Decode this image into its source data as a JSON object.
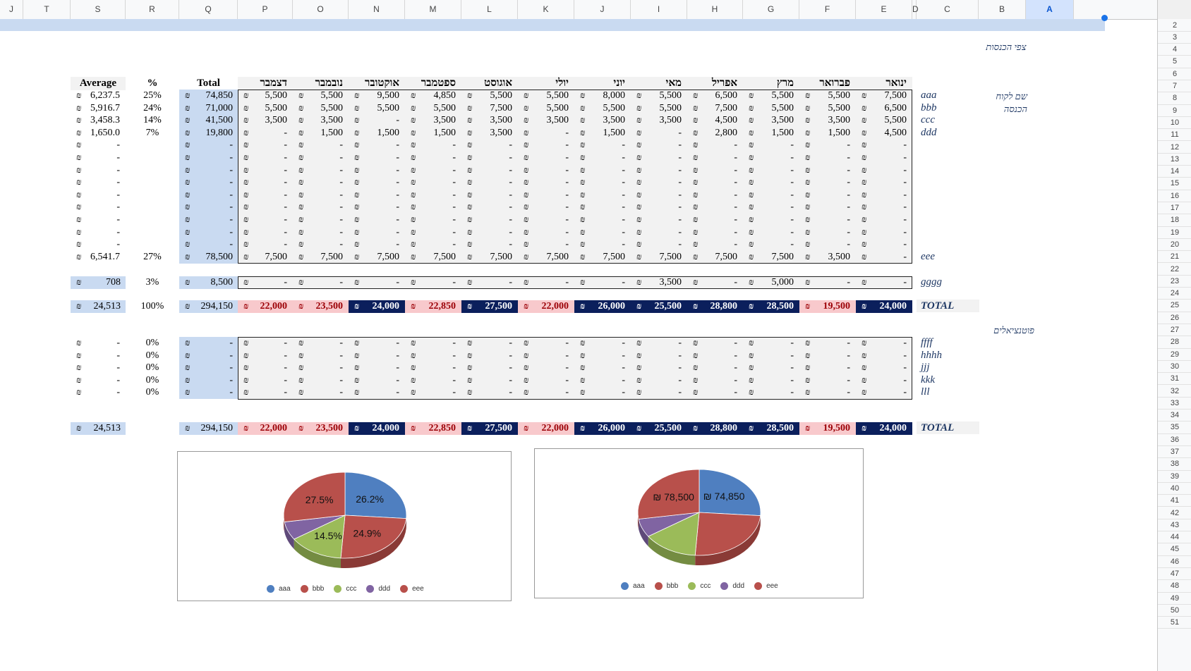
{
  "columns": [
    "J",
    "T",
    "S",
    "R",
    "Q",
    "P",
    "O",
    "N",
    "M",
    "L",
    "K",
    "J",
    "I",
    "H",
    "G",
    "F",
    "E",
    "D",
    "C",
    "B",
    "A"
  ],
  "rows_visible": [
    "2",
    "3",
    "4",
    "5",
    "6",
    "7",
    "8",
    "9",
    "10",
    "11",
    "12",
    "13",
    "14",
    "15",
    "16",
    "17",
    "18",
    "19",
    "20",
    "21",
    "22",
    "23",
    "24",
    "25",
    "26",
    "27",
    "28",
    "29",
    "30",
    "31",
    "32",
    "33",
    "34",
    "35",
    "36",
    "37",
    "38",
    "39",
    "40",
    "41",
    "42",
    "43",
    "44",
    "45",
    "46",
    "47",
    "48",
    "49",
    "50",
    "51"
  ],
  "currency": "₪",
  "labels": {
    "section_title": "צפי הכנסות",
    "client_name": "שם לקוח",
    "income": "הכנסה",
    "potentials": "פוטנציאלים",
    "average": "Average",
    "percent": "%",
    "total": "Total"
  },
  "months": [
    "ינואר",
    "פברואר",
    "מרץ",
    "אפריל",
    "מאי",
    "יוני",
    "יולי",
    "אוגוסט",
    "ספטמבר",
    "אוקטובר",
    "נובמבר",
    "דצמבר"
  ],
  "main_rows": [
    {
      "name": "aaa",
      "vals": [
        "7,500",
        "5,500",
        "5,500",
        "6,500",
        "5,500",
        "8,000",
        "5,500",
        "5,500",
        "4,850",
        "9,500",
        "5,500",
        "5,500"
      ],
      "total": "74,850",
      "pct": "25%",
      "avg": "6,237.5"
    },
    {
      "name": "bbb",
      "vals": [
        "6,500",
        "5,500",
        "5,500",
        "7,500",
        "5,500",
        "5,500",
        "5,500",
        "7,500",
        "5,500",
        "5,500",
        "5,500",
        "5,500"
      ],
      "total": "71,000",
      "pct": "24%",
      "avg": "5,916.7"
    },
    {
      "name": "ccc",
      "vals": [
        "5,500",
        "3,500",
        "3,500",
        "4,500",
        "3,500",
        "3,500",
        "3,500",
        "3,500",
        "3,500",
        "-",
        "3,500",
        "3,500"
      ],
      "total": "41,500",
      "pct": "14%",
      "avg": "3,458.3"
    },
    {
      "name": "ddd",
      "vals": [
        "4,500",
        "1,500",
        "1,500",
        "2,800",
        "-",
        "1,500",
        "-",
        "3,500",
        "1,500",
        "1,500",
        "1,500",
        "-"
      ],
      "total": "19,800",
      "pct": "7%",
      "avg": "1,650.0"
    },
    {
      "name": "",
      "vals": [
        "-",
        "-",
        "-",
        "-",
        "-",
        "-",
        "-",
        "-",
        "-",
        "-",
        "-",
        "-"
      ],
      "total": "-",
      "pct": "",
      "avg": "-"
    },
    {
      "name": "",
      "vals": [
        "-",
        "-",
        "-",
        "-",
        "-",
        "-",
        "-",
        "-",
        "-",
        "-",
        "-",
        "-"
      ],
      "total": "-",
      "pct": "",
      "avg": "-"
    },
    {
      "name": "",
      "vals": [
        "-",
        "-",
        "-",
        "-",
        "-",
        "-",
        "-",
        "-",
        "-",
        "-",
        "-",
        "-"
      ],
      "total": "-",
      "pct": "",
      "avg": "-"
    },
    {
      "name": "",
      "vals": [
        "-",
        "-",
        "-",
        "-",
        "-",
        "-",
        "-",
        "-",
        "-",
        "-",
        "-",
        "-"
      ],
      "total": "-",
      "pct": "",
      "avg": "-"
    },
    {
      "name": "",
      "vals": [
        "-",
        "-",
        "-",
        "-",
        "-",
        "-",
        "-",
        "-",
        "-",
        "-",
        "-",
        "-"
      ],
      "total": "-",
      "pct": "",
      "avg": "-"
    },
    {
      "name": "",
      "vals": [
        "-",
        "-",
        "-",
        "-",
        "-",
        "-",
        "-",
        "-",
        "-",
        "-",
        "-",
        "-"
      ],
      "total": "-",
      "pct": "",
      "avg": "-"
    },
    {
      "name": "",
      "vals": [
        "-",
        "-",
        "-",
        "-",
        "-",
        "-",
        "-",
        "-",
        "-",
        "-",
        "-",
        "-"
      ],
      "total": "-",
      "pct": "",
      "avg": "-"
    },
    {
      "name": "",
      "vals": [
        "-",
        "-",
        "-",
        "-",
        "-",
        "-",
        "-",
        "-",
        "-",
        "-",
        "-",
        "-"
      ],
      "total": "-",
      "pct": "",
      "avg": "-"
    },
    {
      "name": "",
      "vals": [
        "-",
        "-",
        "-",
        "-",
        "-",
        "-",
        "-",
        "-",
        "-",
        "-",
        "-",
        "-"
      ],
      "total": "-",
      "pct": "",
      "avg": "-"
    },
    {
      "name": "eee",
      "vals": [
        "-",
        "3,500",
        "7,500",
        "7,500",
        "7,500",
        "7,500",
        "7,500",
        "7,500",
        "7,500",
        "7,500",
        "7,500",
        "7,500"
      ],
      "total": "78,500",
      "pct": "27%",
      "avg": "6,541.7"
    }
  ],
  "gggg_row": {
    "name": "gggg",
    "vals": [
      "-",
      "-",
      "5,000",
      "-",
      "3,500",
      "-",
      "-",
      "-",
      "-",
      "-",
      "-",
      "-"
    ],
    "total": "8,500",
    "pct": "3%",
    "avg": "708"
  },
  "total_row": {
    "name": "TOTAL",
    "vals": [
      "24,000",
      "19,500",
      "28,500",
      "28,800",
      "25,500",
      "26,000",
      "22,000",
      "27,500",
      "22,850",
      "24,000",
      "23,500",
      "22,000"
    ],
    "highlight": [
      false,
      true,
      false,
      false,
      false,
      false,
      true,
      false,
      true,
      false,
      true,
      true
    ],
    "total": "294,150",
    "pct": "100%",
    "avg": "24,513"
  },
  "potential_rows": [
    {
      "name": "ffff",
      "vals": [
        "-",
        "-",
        "-",
        "-",
        "-",
        "-",
        "-",
        "-",
        "-",
        "-",
        "-",
        "-"
      ],
      "total": "-",
      "pct": "0%",
      "avg": "-"
    },
    {
      "name": "hhhh",
      "vals": [
        "-",
        "-",
        "-",
        "-",
        "-",
        "-",
        "-",
        "-",
        "-",
        "-",
        "-",
        "-"
      ],
      "total": "-",
      "pct": "0%",
      "avg": "-"
    },
    {
      "name": "jjj",
      "vals": [
        "-",
        "-",
        "-",
        "-",
        "-",
        "-",
        "-",
        "-",
        "-",
        "-",
        "-",
        "-"
      ],
      "total": "-",
      "pct": "0%",
      "avg": "-"
    },
    {
      "name": "kkk",
      "vals": [
        "-",
        "-",
        "-",
        "-",
        "-",
        "-",
        "-",
        "-",
        "-",
        "-",
        "-",
        "-"
      ],
      "total": "-",
      "pct": "0%",
      "avg": "-"
    },
    {
      "name": "lll",
      "vals": [
        "-",
        "-",
        "-",
        "-",
        "-",
        "-",
        "-",
        "-",
        "-",
        "-",
        "-",
        "-"
      ],
      "total": "-",
      "pct": "0%",
      "avg": "-"
    }
  ],
  "grand_total_row": {
    "name": "TOTAL",
    "vals": [
      "24,000",
      "19,500",
      "28,500",
      "28,800",
      "25,500",
      "26,000",
      "22,000",
      "27,500",
      "22,850",
      "24,000",
      "23,500",
      "22,000"
    ],
    "highlight": [
      false,
      true,
      false,
      false,
      false,
      false,
      true,
      false,
      true,
      false,
      true,
      true
    ],
    "total": "294,150",
    "avg": "24,513"
  },
  "colors": {
    "header_bg": "#f8f9fa",
    "selection": "#c9daf1",
    "total_col": "#c9daf1",
    "navy": "#0b1f5c",
    "pink": "#f8c9cc",
    "pink_text": "#9c0006",
    "data_bg": "#f2f2f2",
    "aaa": "#4f7fc0",
    "bbb": "#b8504b",
    "ccc": "#9bbb59",
    "ddd": "#8064a2",
    "eee": "#b8504b"
  },
  "chart_data": [
    {
      "type": "pie",
      "title": "",
      "labels": [
        "aaa",
        "bbb",
        "ccc",
        "ddd",
        "eee"
      ],
      "values": [
        26.2,
        24.9,
        14.5,
        6.9,
        27.5
      ],
      "data_labels": [
        "26.2%",
        "24.9%",
        "14.5%",
        "",
        "27.5%"
      ],
      "legend": "bottom"
    },
    {
      "type": "pie",
      "title": "",
      "labels": [
        "aaa",
        "bbb",
        "ccc",
        "ddd",
        "eee"
      ],
      "values": [
        74850,
        71000,
        41500,
        19800,
        78500
      ],
      "data_labels": [
        "₪ 74,850",
        "",
        "",
        "",
        "₪ 78,500"
      ],
      "legend": "bottom"
    }
  ]
}
